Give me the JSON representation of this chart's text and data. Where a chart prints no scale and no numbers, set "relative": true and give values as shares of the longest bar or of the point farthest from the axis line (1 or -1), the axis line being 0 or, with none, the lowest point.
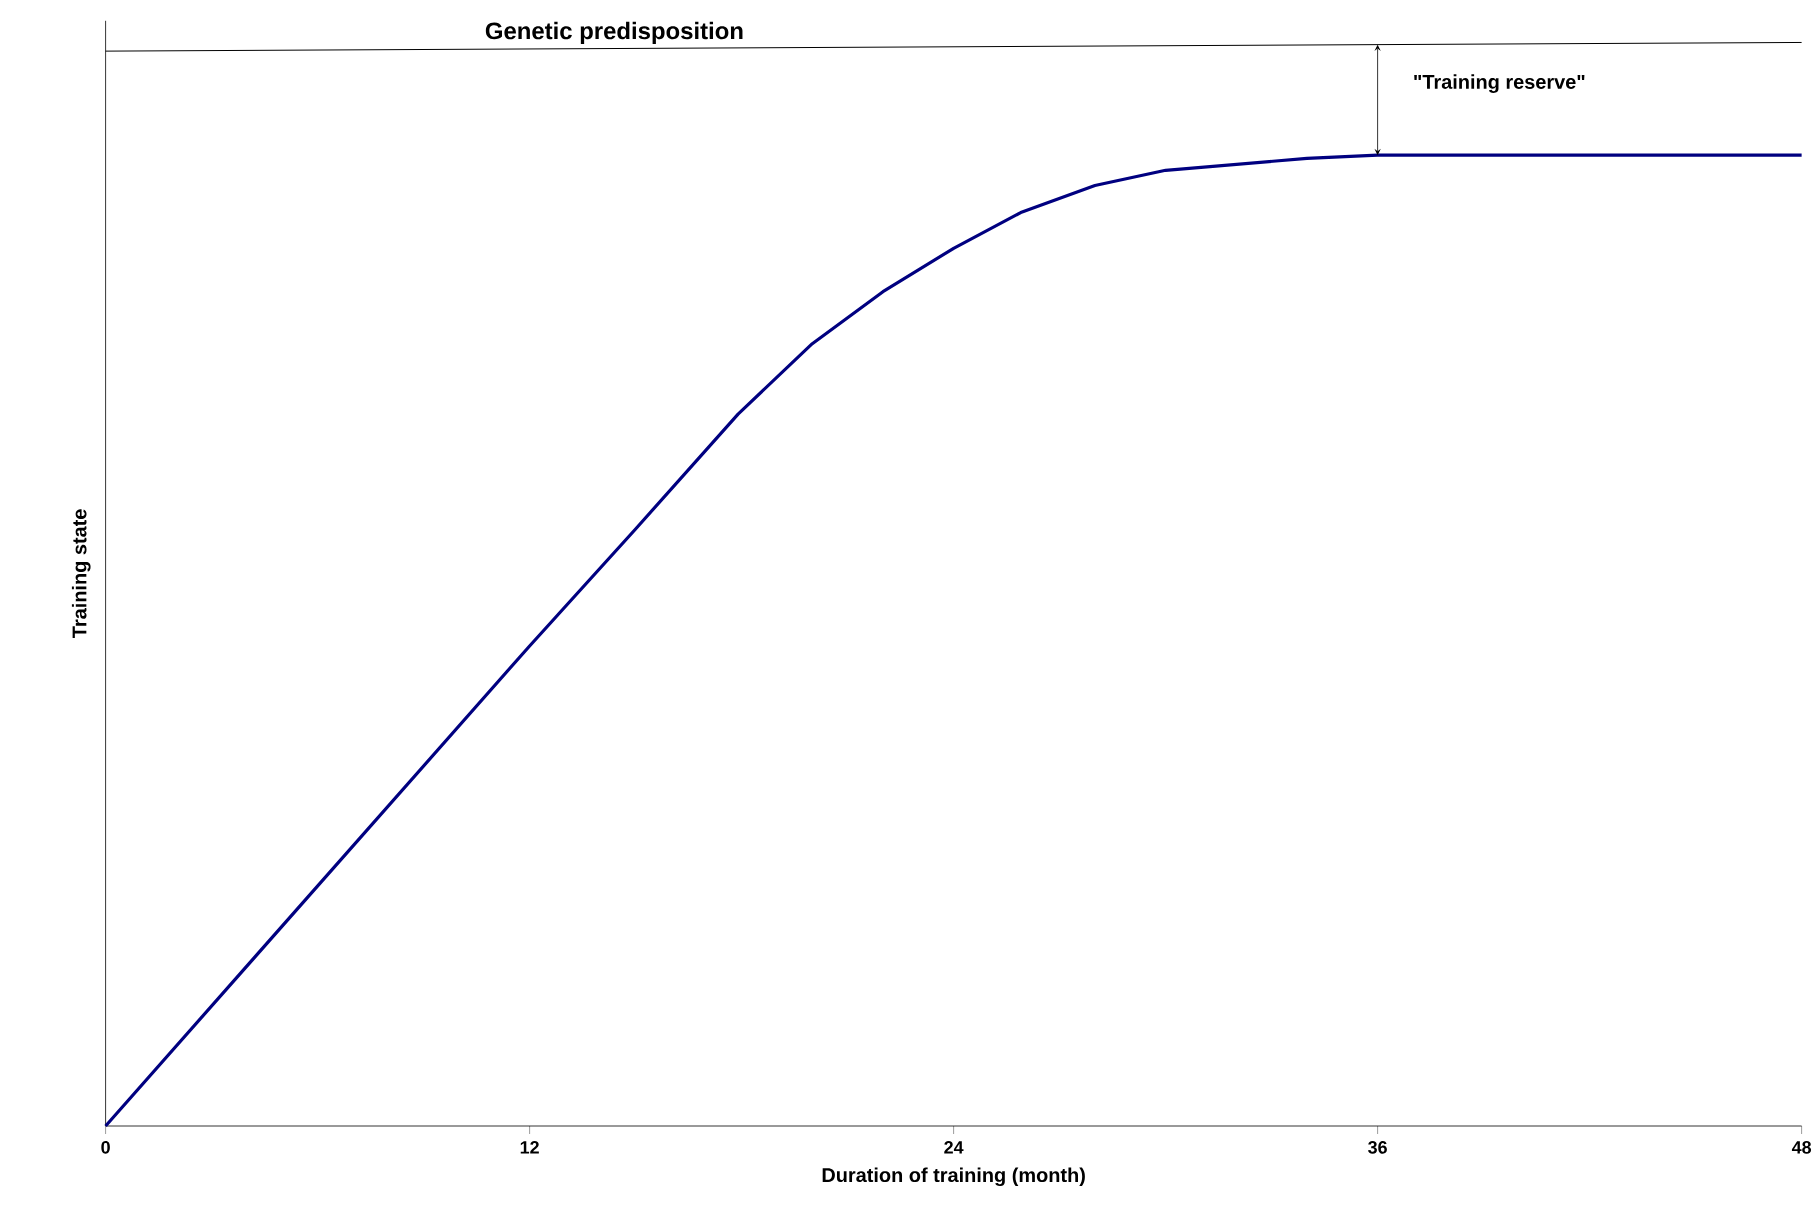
{
  "chart_data": {
    "type": "line",
    "relative": true,
    "xlabel": "Duration of training (month)",
    "ylabel": "Training state",
    "xlim": [
      0,
      48
    ],
    "xticks": [
      0,
      12,
      24,
      36,
      48
    ],
    "grid": false,
    "legend": false,
    "marker": "none",
    "line_style": "solid",
    "series": [
      {
        "color": "#000080",
        "x": [
          0,
          12,
          15,
          17.9,
          20,
          22,
          24,
          25.9,
          28,
          30,
          34,
          36,
          48
        ],
        "values": [
          0,
          0.443,
          0.551,
          0.657,
          0.722,
          0.77,
          0.81,
          0.843,
          0.868,
          0.882,
          0.893,
          0.896,
          0.896
        ]
      },
      {
        "name": "Genetic predisposition",
        "color": "#000000",
        "x": [
          0,
          48
        ],
        "values": [
          0.992,
          1
        ]
      }
    ],
    "annotations": [
      "\"Training reserve\""
    ]
  }
}
